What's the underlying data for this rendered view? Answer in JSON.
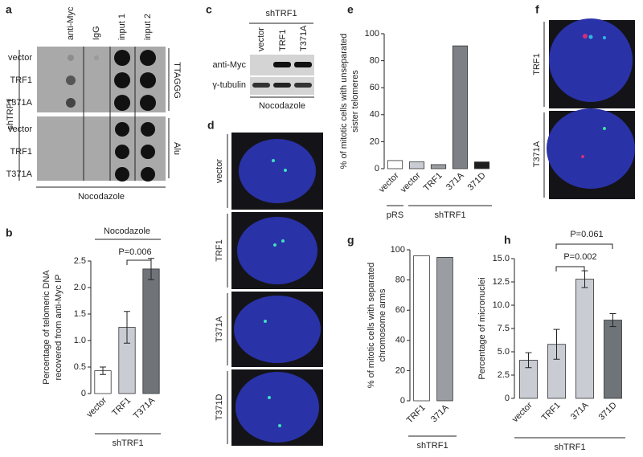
{
  "panel_letters": [
    "a",
    "b",
    "c",
    "d",
    "e",
    "f",
    "g",
    "h"
  ],
  "blot_a": {
    "columns": [
      "anti-Myc",
      "IgG",
      "input 1",
      "input 2"
    ],
    "rows_top": [
      "vector",
      "TRF1",
      "T371A"
    ],
    "rows_bottom": [
      "vector",
      "TRF1",
      "T371A"
    ],
    "probe_top": "TTAGGG",
    "probe_bottom": "Alu",
    "side_label": "shTRF1",
    "treatment": "Nocodazole"
  },
  "blot_c": {
    "header": "shTRF1",
    "lanes": [
      "vector",
      "TRF1",
      "T371A"
    ],
    "rows": [
      "anti-Myc",
      "γ-tubulin"
    ],
    "treatment": "Nocodazole"
  },
  "images_d": {
    "labels": [
      "vector",
      "TRF1",
      "T371A",
      "T371D"
    ]
  },
  "images_f": {
    "labels": [
      "TRF1",
      "T371A"
    ]
  },
  "chart_data": [
    {
      "type": "bar",
      "y_label": [
        "Percentage of telomeric DNA",
        "recovered from anti-Myc IP"
      ],
      "categories": [
        "vector",
        "TRF1",
        "T371A"
      ],
      "values": [
        0.43,
        1.25,
        2.35
      ],
      "errors": [
        0.07,
        0.3,
        0.2
      ],
      "colors": [
        "#ffffff",
        "#c9ccd3",
        "#6f7479"
      ],
      "ylim": [
        0,
        2.5
      ],
      "yticks": [
        0,
        0.5,
        {
          "value": 1,
          "label": "1.0"
        },
        1.5,
        {
          "value": 2,
          "label": "2.0"
        },
        2.5
      ],
      "group_labels": [
        "shTRF1"
      ],
      "annotations": [
        "Nocodazole",
        "P=0.006"
      ]
    },
    {
      "type": "bar",
      "y_label": [
        "% of mitotic cells with unseparated",
        "sister telomeres"
      ],
      "categories": [
        "vector",
        "vector",
        "TRF1",
        "371A",
        "371D"
      ],
      "values": [
        6,
        5,
        3,
        91,
        5
      ],
      "colors": [
        "#ffffff",
        "#c9ccd3",
        "#9a9ea3",
        "#7d8186",
        "#1e1e1e"
      ],
      "ylim": [
        0,
        100
      ],
      "yticks": [
        0,
        20,
        40,
        60,
        80,
        100
      ],
      "group_labels": [
        "pRS",
        "shTRF1"
      ]
    },
    {
      "type": "bar",
      "y_label": [
        "% of mitotic cells with separated",
        "chromosome arms"
      ],
      "categories": [
        "TRF1",
        "371A"
      ],
      "values": [
        96,
        95
      ],
      "colors": [
        "#ffffff",
        "#9a9ea3"
      ],
      "ylim": [
        0,
        100
      ],
      "yticks": [
        0,
        20,
        40,
        60,
        80,
        100
      ],
      "group_labels": [
        "shTRF1"
      ]
    },
    {
      "type": "bar",
      "y_label": [
        "Percentage of micronuclei"
      ],
      "categories": [
        "vector",
        "TRF1",
        "371A",
        "371D"
      ],
      "values": [
        4.1,
        5.8,
        12.8,
        8.4
      ],
      "errors": [
        0.8,
        1.6,
        0.9,
        0.7
      ],
      "colors": [
        "#c9ccd3",
        "#c9ccd3",
        "#c9ccd3",
        "#6f7479"
      ],
      "ylim": [
        0,
        15
      ],
      "yticks": [
        0,
        2.5,
        {
          "value": 5,
          "label": "5.0"
        },
        7.5,
        {
          "value": 10,
          "label": "10.0"
        },
        12.5,
        {
          "value": 15,
          "label": "15.0"
        }
      ],
      "group_labels": [
        "shTRF1"
      ],
      "annotations": [
        "P=0.002",
        "P=0.061"
      ]
    }
  ]
}
